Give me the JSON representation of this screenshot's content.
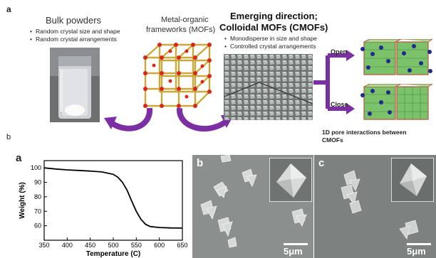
{
  "panel_top": {
    "label": "a",
    "bulk": {
      "title": "Bulk powders",
      "bullets": [
        "Random crystal size and shape",
        "Random crystal arrangements"
      ]
    },
    "mof": {
      "title_line1": "Metal-organic",
      "title_line2": "frameworks (MOFs)"
    },
    "emerging": {
      "title_line1": "Emerging direction;",
      "title_line2": "Colloidal MOFs (CMOFs)",
      "bullets": [
        "Monodisperse in size and shape",
        "Controlled crystal arrangements"
      ]
    },
    "open_label": "Open",
    "close_label": "Close",
    "pore_caption_line1": "1D pore interactions between",
    "pore_caption_line2": "CMOFs"
  },
  "panel_b_label": "b",
  "tga": {
    "label": "a",
    "sem_b_label": "b",
    "sem_c_label": "c",
    "scale_b": "5μm",
    "scale_c": "5μm"
  },
  "chart_data": {
    "type": "line",
    "xlabel": "Temperature (C)",
    "ylabel": "Weight (%)",
    "xlim": [
      350,
      650
    ],
    "ylim": [
      50,
      105
    ],
    "xticks": [
      350,
      400,
      450,
      500,
      550,
      600,
      650
    ],
    "yticks": [
      60,
      70,
      80,
      90,
      100
    ],
    "x": [
      350,
      375,
      400,
      425,
      450,
      475,
      500,
      510,
      520,
      530,
      540,
      550,
      560,
      570,
      580,
      600,
      625,
      650
    ],
    "y": [
      100,
      99.2,
      98.6,
      98.2,
      97.8,
      97.2,
      95.5,
      93.5,
      90.0,
      84.5,
      77.0,
      70.0,
      64.5,
      61.0,
      59.5,
      58.8,
      58.5,
      58.4
    ],
    "grid": false
  }
}
